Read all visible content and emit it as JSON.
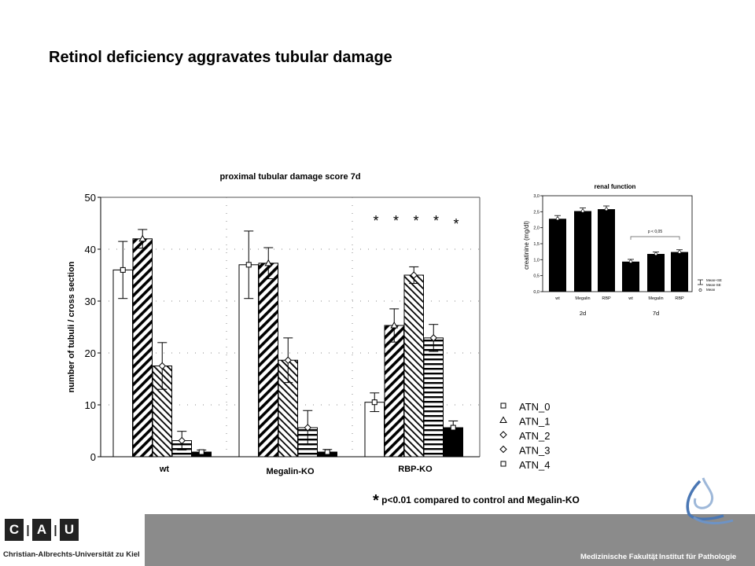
{
  "slide": {
    "title": "Retinol deficiency aggravates tubular damage",
    "footnote_star": "*",
    "footnote_text": "p<0.01 compared to control and Megalin-KO"
  },
  "colors": {
    "footer_gray": "#8b8b8b",
    "bar_black": "#000000"
  },
  "chart_data": [
    {
      "type": "bar",
      "title": "proximal tubular damage score 7d",
      "ylabel": "number of tubuli / cross section",
      "ylim": [
        0,
        50
      ],
      "yticks": [
        0,
        10,
        20,
        30,
        40,
        50
      ],
      "categories": [
        "wt",
        "Megalin-KO",
        "RBP-KO"
      ],
      "significance_markers": [
        "*",
        "*",
        "*",
        "*",
        "*"
      ],
      "series": [
        {
          "name": "ATN_0",
          "pattern": "empty",
          "marker": "square",
          "values": [
            36,
            37,
            10.5
          ],
          "err": [
            5.5,
            6.5,
            1.8
          ]
        },
        {
          "name": "ATN_1",
          "pattern": "wide-diagonal",
          "marker": "triangle",
          "values": [
            42,
            37.3,
            25.3
          ],
          "err": [
            1.8,
            3,
            3.2
          ]
        },
        {
          "name": "ATN_2",
          "pattern": "downward-diagonal",
          "marker": "diamond",
          "values": [
            17.5,
            18.6,
            35
          ],
          "err": [
            4.5,
            4.3,
            1.6
          ]
        },
        {
          "name": "ATN_3",
          "pattern": "horizontal-lines",
          "marker": "diamond",
          "values": [
            3.1,
            5.6,
            22.9
          ],
          "err": [
            1.8,
            3.3,
            2.6
          ]
        },
        {
          "name": "ATN_4",
          "pattern": "solid",
          "marker": "square",
          "values": [
            0.9,
            0.9,
            5.6
          ],
          "err": [
            0.4,
            0.5,
            1.3
          ]
        }
      ]
    },
    {
      "type": "bar",
      "title": "renal function",
      "ylabel": "creatinine (mg/dl)",
      "ylim": [
        0,
        3.0
      ],
      "ytick_labels": [
        "0,0",
        "0,5",
        "1,0",
        "1,5",
        "2,0",
        "2,5",
        "3,0"
      ],
      "categories": [
        "wt",
        "Megalin",
        "RBP",
        "wt",
        "Megalin",
        "RBP"
      ],
      "groups": [
        "2d",
        "7d"
      ],
      "values": [
        2.28,
        2.52,
        2.58,
        0.94,
        1.18,
        1.24
      ],
      "err": [
        0.1,
        0.1,
        0.1,
        0.07,
        0.06,
        0.07
      ],
      "annotation": "p < 0,05",
      "legend": [
        "Mean+SE",
        "Mean-SE",
        "Mean"
      ]
    }
  ],
  "footer": {
    "logo_letters": [
      "C",
      "A",
      "U"
    ],
    "university": "Christian-Albrechts-Universität zu Kiel",
    "faculty": "Medizinische Fakultät",
    "institute": "Institut für Pathologie"
  }
}
